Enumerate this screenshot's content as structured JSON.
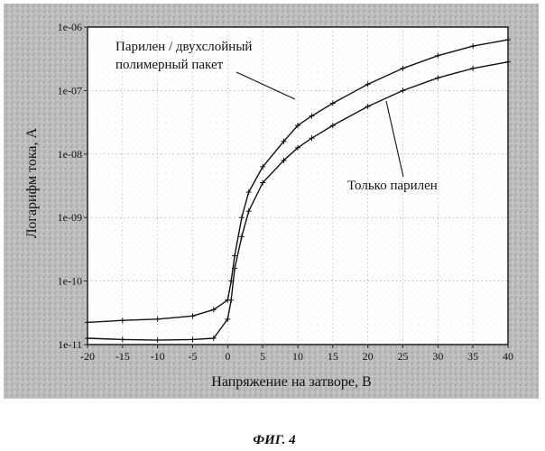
{
  "figure_caption": "ФИГ. 4",
  "chart_data": {
    "type": "line",
    "title": "",
    "xlabel": "Напряжение на затворе, В",
    "ylabel": "Логарифм тока, А",
    "xlim": [
      -20,
      40
    ],
    "ylim_log10": [
      -11,
      -6
    ],
    "log_y": true,
    "grid": true,
    "x_ticks": [
      "-20",
      "-15",
      "-10",
      "-5",
      "0",
      "5",
      "10",
      "15",
      "20",
      "25",
      "30",
      "35",
      "40"
    ],
    "y_ticks": [
      "1e-11",
      "1e-10",
      "1e-09",
      "1e-08",
      "1e-07",
      "1e-06"
    ],
    "annotations": [
      {
        "text": "Парилен / двухслойный",
        "series": 0
      },
      {
        "text": "полимерный пакет",
        "series": 0
      },
      {
        "text": "Только парилен",
        "series": 1
      }
    ],
    "series": [
      {
        "x": [
          -20,
          -15,
          -10,
          -5,
          -2,
          0,
          0.5,
          1,
          2,
          3,
          5,
          8,
          10,
          12,
          15,
          20,
          25,
          30,
          35,
          40
        ],
        "y_log10": [
          -10.65,
          -10.62,
          -10.6,
          -10.55,
          -10.45,
          -10.3,
          -10.0,
          -9.6,
          -9.0,
          -8.6,
          -8.2,
          -7.8,
          -7.55,
          -7.4,
          -7.2,
          -6.9,
          -6.65,
          -6.45,
          -6.3,
          -6.2
        ]
      },
      {
        "x": [
          -20,
          -15,
          -10,
          -5,
          -2,
          0,
          0.5,
          1,
          2,
          3,
          5,
          8,
          10,
          12,
          15,
          20,
          25,
          30,
          35,
          40
        ],
        "y_log10": [
          -10.9,
          -10.92,
          -10.93,
          -10.92,
          -10.9,
          -10.6,
          -10.3,
          -9.8,
          -9.3,
          -8.9,
          -8.45,
          -8.1,
          -7.9,
          -7.75,
          -7.55,
          -7.25,
          -7.0,
          -6.8,
          -6.65,
          -6.55
        ]
      }
    ]
  }
}
